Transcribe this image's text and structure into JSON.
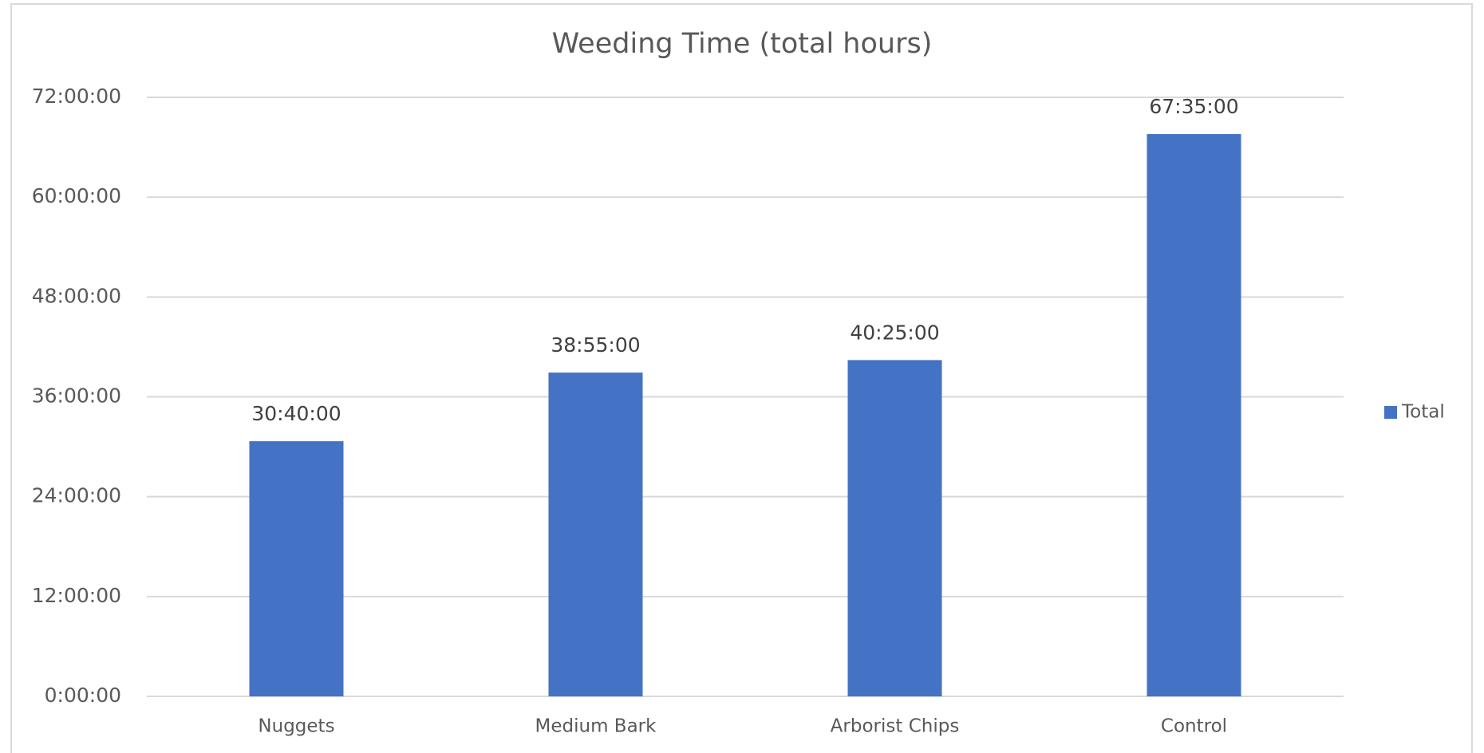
{
  "chart_data": {
    "type": "bar",
    "title": "Weeding Time (total hours)",
    "categories": [
      "Nuggets",
      "Medium Bark",
      "Arborist Chips",
      "Control"
    ],
    "series": [
      {
        "name": "Total",
        "color": "#4472c4",
        "values": [
          30.6667,
          38.9167,
          40.4167,
          67.5833
        ],
        "value_labels": [
          "30:40:00",
          "38:55:00",
          "40:25:00",
          "67:35:00"
        ]
      }
    ],
    "ylim": [
      0,
      72
    ],
    "yticks": [
      {
        "value": 0,
        "label": "0:00:00"
      },
      {
        "value": 12,
        "label": "12:00:00"
      },
      {
        "value": 24,
        "label": "24:00:00"
      },
      {
        "value": 36,
        "label": "36:00:00"
      },
      {
        "value": 48,
        "label": "48:00:00"
      },
      {
        "value": 60,
        "label": "60:00:00"
      },
      {
        "value": 72,
        "label": "72:00:00"
      }
    ],
    "grid": true,
    "legend": "right"
  }
}
